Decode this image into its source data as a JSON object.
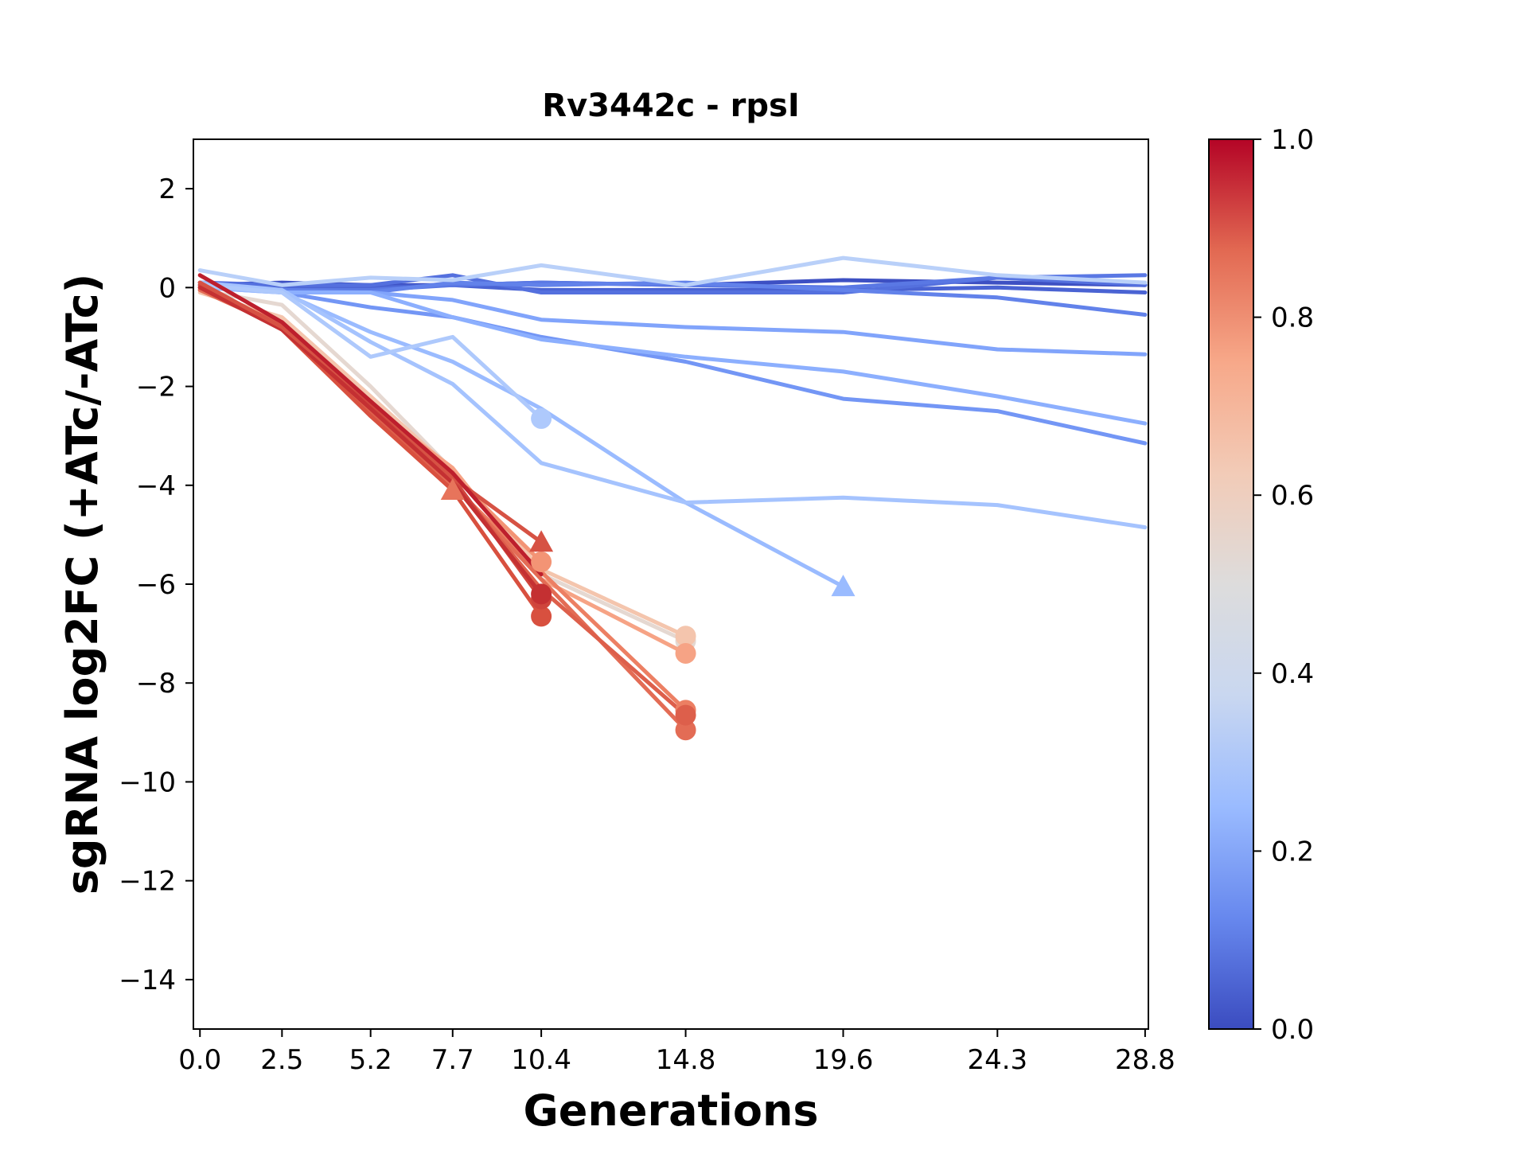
{
  "chart_data": {
    "type": "line",
    "title": "Rv3442c - rpsI",
    "xlabel": "Generations",
    "ylabel": "sgRNA log2FC (+ATc/-ATc)",
    "xticks": [
      0.0,
      2.5,
      5.2,
      7.7,
      10.4,
      14.8,
      19.6,
      24.3,
      28.8
    ],
    "xtick_labels": [
      "0.0",
      "2.5",
      "5.2",
      "7.7",
      "10.4",
      "14.8",
      "19.6",
      "24.3",
      "28.8"
    ],
    "yticks": [
      2,
      0,
      -2,
      -4,
      -6,
      -8,
      -10,
      -12,
      -14
    ],
    "ytick_labels": [
      "2",
      "0",
      "−2",
      "−4",
      "−6",
      "−8",
      "−10",
      "−12",
      "−14"
    ],
    "xlim": [
      -0.2,
      28.9
    ],
    "ylim": [
      -15,
      3
    ],
    "grid": false,
    "colorbar": {
      "colormap": "coolwarm",
      "range": [
        0.0,
        1.0
      ],
      "ticks": [
        0.0,
        0.2,
        0.4,
        0.6,
        0.8,
        1.0
      ],
      "tick_labels": [
        "0.0",
        "0.2",
        "0.4",
        "0.6",
        "0.8",
        "1.0"
      ],
      "stops": [
        "#3b4cc0",
        "#6788ee",
        "#9abbff",
        "#c9d7f0",
        "#dddcdc",
        "#f2cbb7",
        "#f7a889",
        "#e26952",
        "#b40426"
      ]
    },
    "series": [
      {
        "color": "#3d50c3",
        "x": [
          0.0,
          2.5,
          5.2,
          7.7,
          10.4,
          14.8,
          19.6,
          24.3,
          28.8
        ],
        "y": [
          0.05,
          0.1,
          0.05,
          0.05,
          0.1,
          0.05,
          0.15,
          0.1,
          0.05
        ],
        "end_marker": "none"
      },
      {
        "color": "#4a63d3",
        "x": [
          0.0,
          2.5,
          5.2,
          7.7,
          10.4,
          14.8,
          19.6,
          24.3,
          28.8
        ],
        "y": [
          0.05,
          0.0,
          0.0,
          0.05,
          -0.05,
          -0.05,
          -0.05,
          0.0,
          -0.1
        ],
        "end_marker": "none"
      },
      {
        "color": "#5470de",
        "x": [
          0.0,
          2.5,
          5.2,
          7.7,
          10.4,
          14.8,
          19.6,
          24.3,
          28.8
        ],
        "y": [
          0.1,
          0.05,
          0.05,
          0.25,
          -0.1,
          -0.1,
          -0.1,
          0.2,
          0.05
        ],
        "end_marker": "none"
      },
      {
        "color": "#5a78e4",
        "x": [
          0.0,
          2.5,
          5.2,
          7.7,
          10.4,
          14.8,
          19.6,
          24.3,
          28.8
        ],
        "y": [
          0.0,
          -0.05,
          -0.05,
          0.05,
          0.1,
          0.05,
          0.0,
          0.2,
          0.25
        ],
        "end_marker": "none"
      },
      {
        "color": "#6282ea",
        "x": [
          0.0,
          2.5,
          5.2,
          7.7,
          10.4,
          14.8,
          19.6,
          24.3,
          28.8
        ],
        "y": [
          0.05,
          -0.05,
          -0.1,
          0.1,
          0.05,
          0.1,
          -0.05,
          -0.2,
          -0.55
        ],
        "end_marker": "none"
      },
      {
        "color": "#7396f5",
        "x": [
          0.0,
          2.5,
          5.2,
          7.7,
          10.4,
          14.8,
          19.6,
          24.3,
          28.8
        ],
        "y": [
          0.1,
          -0.1,
          -0.4,
          -0.6,
          -1.0,
          -1.5,
          -2.25,
          -2.5,
          -3.15
        ],
        "end_marker": "none"
      },
      {
        "color": "#81a4fb",
        "x": [
          0.0,
          2.5,
          5.2,
          7.7,
          10.4,
          14.8,
          19.6,
          24.3,
          28.8
        ],
        "y": [
          0.05,
          -0.1,
          -0.1,
          -0.25,
          -0.65,
          -0.8,
          -0.9,
          -1.25,
          -1.35
        ],
        "end_marker": "none"
      },
      {
        "color": "#8caffe",
        "x": [
          0.0,
          2.5,
          5.2,
          7.7,
          10.4,
          14.8,
          19.6,
          24.3,
          28.8
        ],
        "y": [
          0.0,
          -0.1,
          -0.1,
          -0.6,
          -1.05,
          -1.4,
          -1.7,
          -2.2,
          -2.75
        ],
        "end_marker": "none"
      },
      {
        "color": "#9abbff",
        "x": [
          0.0,
          2.5,
          5.2,
          7.7,
          10.4,
          14.8,
          19.6
        ],
        "y": [
          0.0,
          -0.1,
          -0.9,
          -1.5,
          -2.45,
          -4.35,
          -6.05
        ],
        "end_marker": "triangle"
      },
      {
        "color": "#a5c3fe",
        "x": [
          0.0,
          2.5,
          5.2,
          7.7,
          10.4,
          14.8,
          19.6,
          24.3,
          28.8
        ],
        "y": [
          0.1,
          -0.05,
          -1.1,
          -1.95,
          -3.55,
          -4.35,
          -4.25,
          -4.4,
          -4.85
        ],
        "end_marker": "none"
      },
      {
        "color": "#aec9fc",
        "x": [
          0.0,
          2.5,
          5.2,
          7.7,
          10.4
        ],
        "y": [
          0.05,
          -0.1,
          -1.4,
          -1.0,
          -2.65
        ],
        "end_marker": "circle"
      },
      {
        "color": "#b9d0f9",
        "x": [
          0.0,
          2.5,
          5.2,
          7.7,
          10.4,
          14.8,
          19.6,
          24.3,
          28.8
        ],
        "y": [
          0.35,
          0.05,
          0.2,
          0.15,
          0.45,
          0.05,
          0.6,
          0.25,
          0.1
        ],
        "end_marker": "none"
      },
      {
        "color": "#e5d8d1",
        "x": [
          0.0,
          2.5,
          5.2,
          7.7,
          10.4,
          14.8
        ],
        "y": [
          -0.05,
          -0.35,
          -2.0,
          -3.7,
          -5.8,
          -7.15
        ],
        "end_marker": "circle"
      },
      {
        "color": "#f4c5ad",
        "x": [
          0.0,
          2.5,
          5.2,
          7.7,
          10.4,
          14.8
        ],
        "y": [
          -0.1,
          -0.6,
          -2.2,
          -3.7,
          -5.7,
          -7.05
        ],
        "end_marker": "circle"
      },
      {
        "color": "#f6a385",
        "x": [
          0.0,
          2.5,
          5.2,
          7.7,
          10.4,
          14.8
        ],
        "y": [
          -0.05,
          -0.7,
          -2.4,
          -3.65,
          -5.9,
          -7.4
        ],
        "end_marker": "circle"
      },
      {
        "color": "#f39475",
        "x": [
          0.0,
          2.5,
          5.2,
          7.7,
          10.4
        ],
        "y": [
          -0.05,
          -0.8,
          -2.5,
          -3.8,
          -5.55
        ],
        "end_marker": "circle"
      },
      {
        "color": "#ec7f63",
        "x": [
          0.0,
          2.5,
          5.2,
          7.7,
          10.4,
          14.8
        ],
        "y": [
          0.0,
          -0.75,
          -2.5,
          -4.0,
          -5.75,
          -8.55
        ],
        "end_marker": "circle"
      },
      {
        "color": "#e7745b",
        "x": [
          0.0,
          2.5,
          5.2,
          7.7
        ],
        "y": [
          0.0,
          -0.75,
          -2.55,
          -4.1
        ],
        "end_marker": "triangle"
      },
      {
        "color": "#e36c55",
        "x": [
          0.0,
          2.5,
          5.2,
          7.7,
          10.4,
          14.8
        ],
        "y": [
          -0.05,
          -0.8,
          -2.6,
          -4.0,
          -5.9,
          -8.95
        ],
        "end_marker": "circle"
      },
      {
        "color": "#dd5f4b",
        "x": [
          0.0,
          2.5,
          5.2,
          7.7,
          10.4,
          14.8
        ],
        "y": [
          0.0,
          -0.75,
          -2.55,
          -3.95,
          -6.1,
          -8.65
        ],
        "end_marker": "circle"
      },
      {
        "color": "#d8503f",
        "x": [
          0.0,
          2.5,
          5.2,
          7.7,
          10.4
        ],
        "y": [
          0.1,
          -0.85,
          -2.6,
          -4.1,
          -6.65
        ],
        "end_marker": "circle"
      },
      {
        "color": "#cf453c",
        "x": [
          0.0,
          2.5,
          5.2,
          7.7,
          10.4
        ],
        "y": [
          0.05,
          -0.8,
          -2.4,
          -3.85,
          -6.3
        ],
        "end_marker": "circle"
      },
      {
        "color": "#c43032",
        "x": [
          0.0,
          2.5,
          5.2,
          7.7,
          10.4
        ],
        "y": [
          0.0,
          -0.85,
          -2.45,
          -3.95,
          -6.2
        ],
        "end_marker": "circle"
      },
      {
        "color": "#d65244",
        "x": [
          0.0,
          2.5,
          5.2,
          7.7,
          10.4
        ],
        "y": [
          0.1,
          -0.8,
          -2.3,
          -3.85,
          -5.15
        ],
        "end_marker": "triangle"
      },
      {
        "color": "#bd1f2d",
        "x": [
          0.0,
          2.5,
          5.2,
          7.7,
          10.4
        ],
        "y": [
          0.25,
          -0.7,
          -2.3,
          -3.75,
          -5.8
        ],
        "end_marker": "none"
      }
    ]
  }
}
